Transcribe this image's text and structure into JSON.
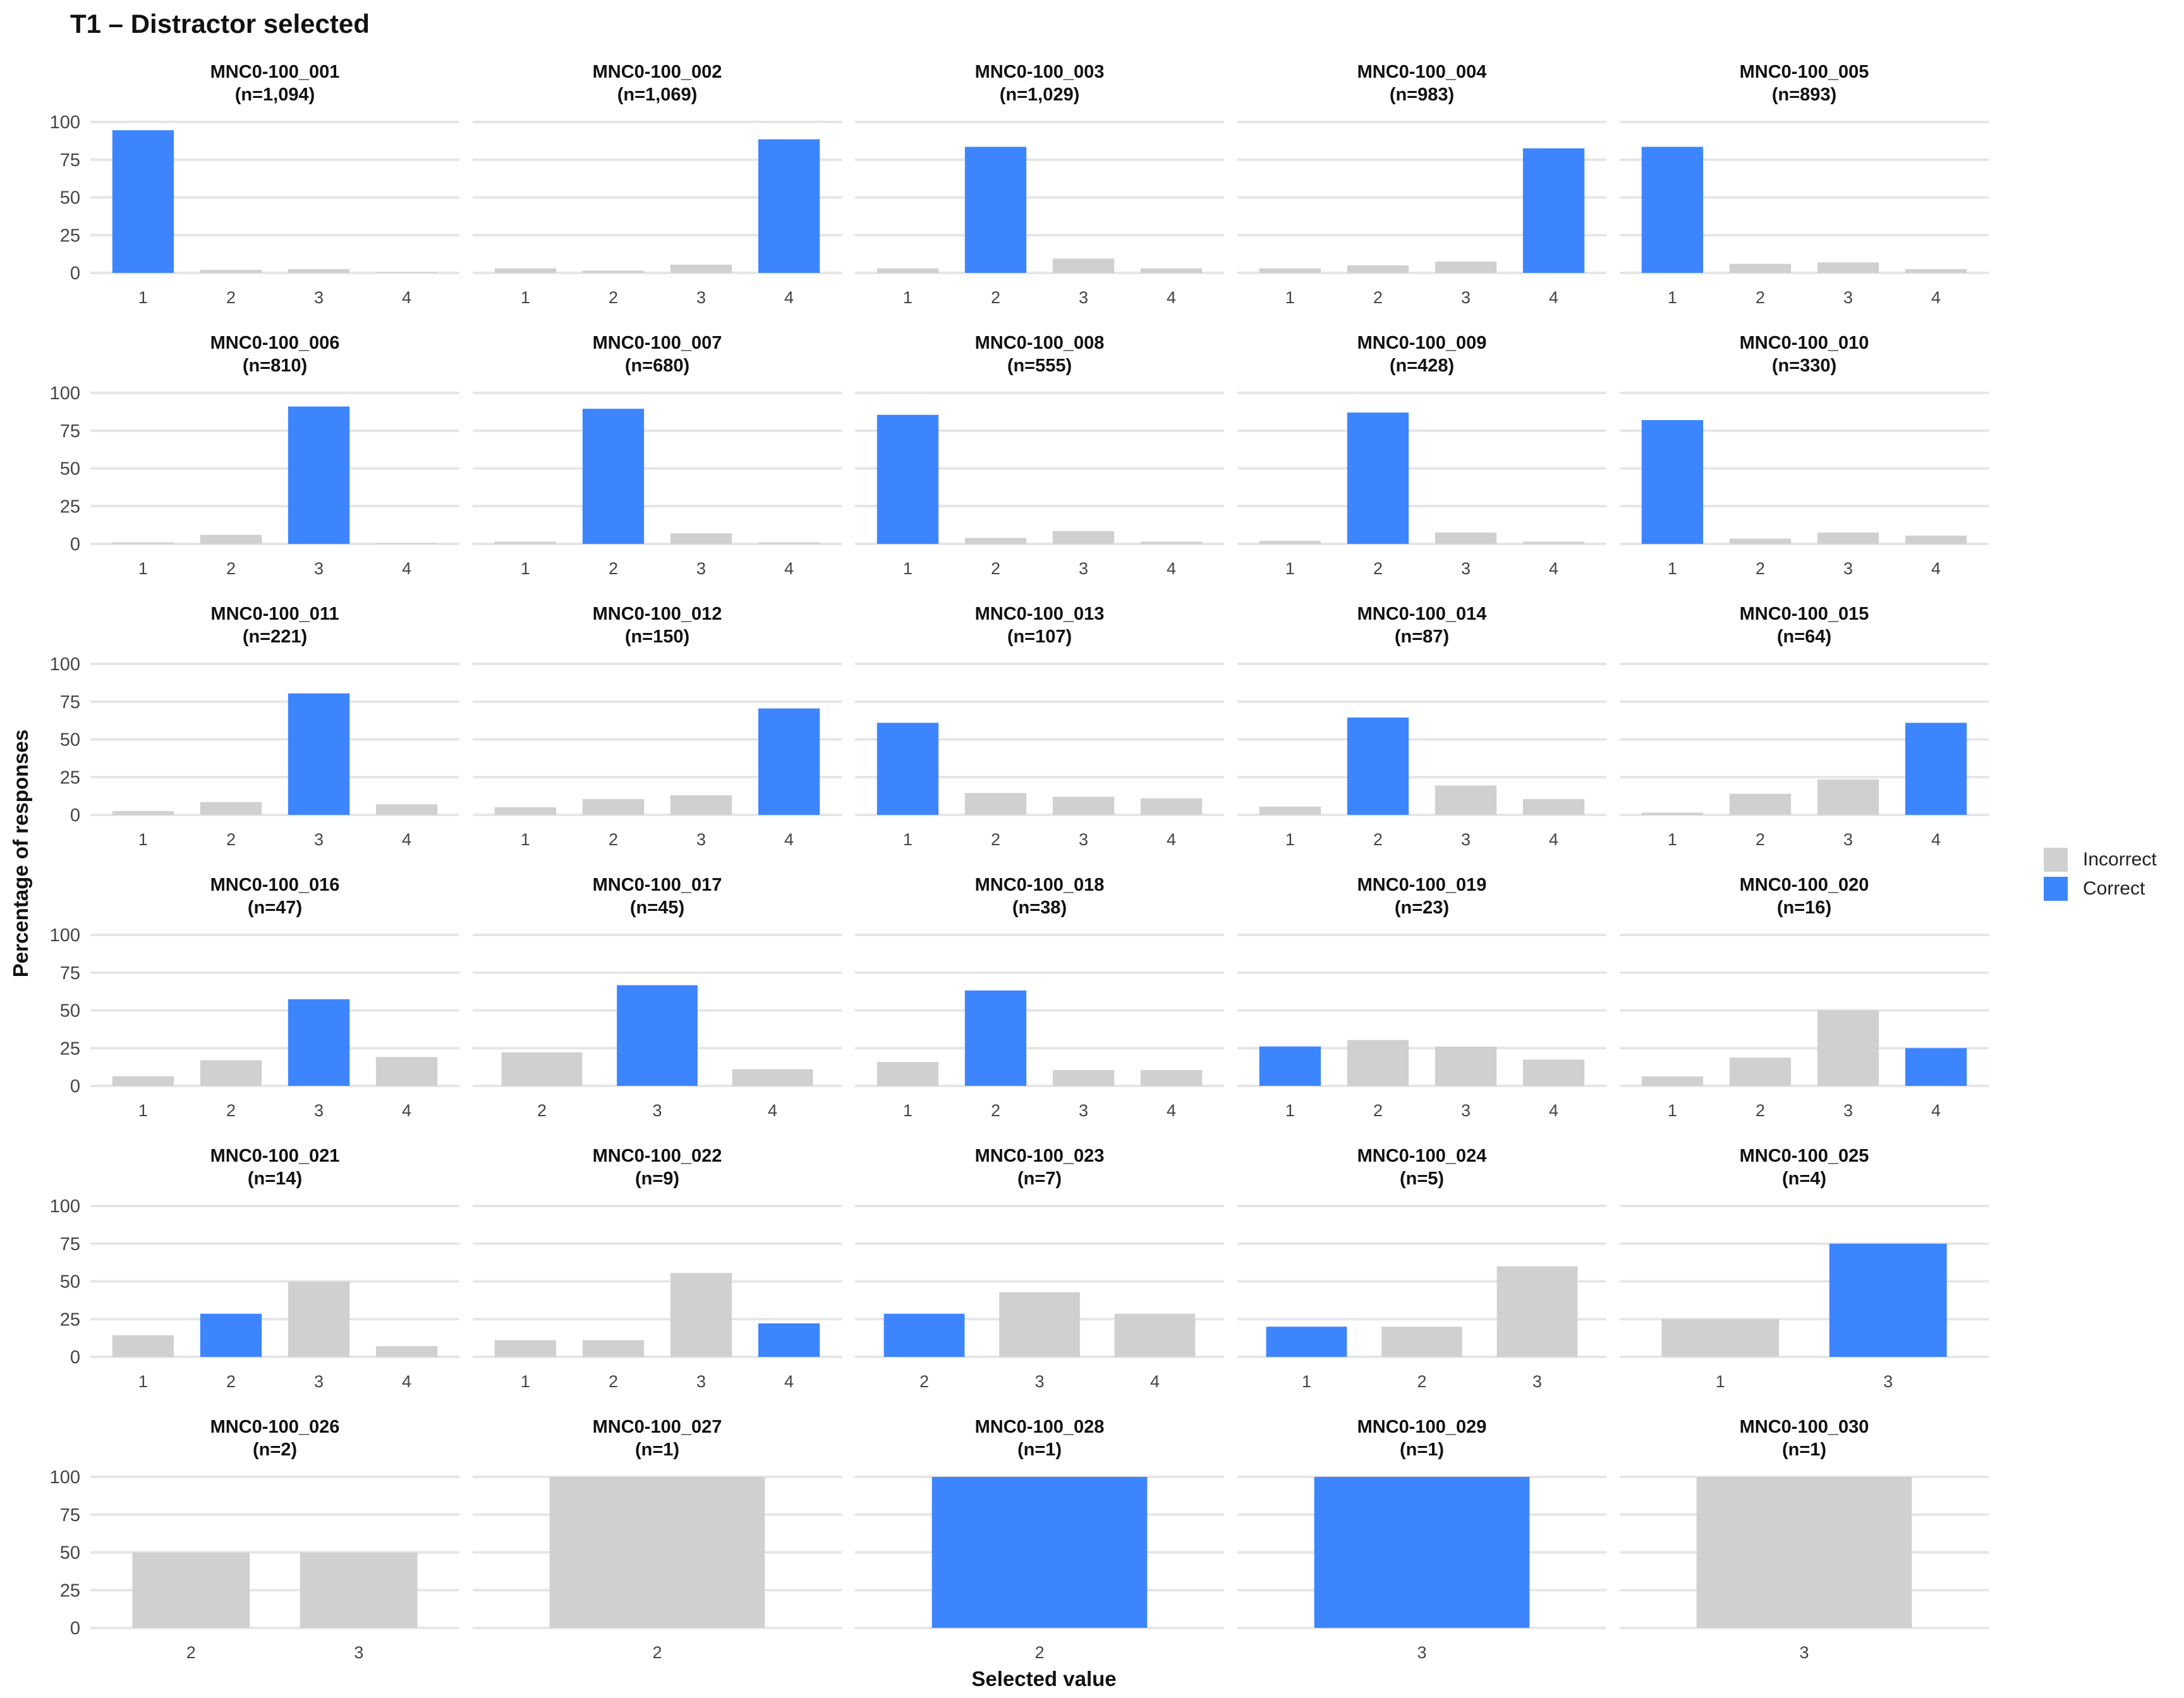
{
  "chart_data": {
    "type": "bar",
    "title": "T1 – Distractor selected",
    "xlabel": "Selected value",
    "ylabel": "Percentage of responses",
    "ylim": [
      0,
      100
    ],
    "yticks": [
      "0",
      "25",
      "50",
      "75",
      "100"
    ],
    "grid": true,
    "legend_position": "right",
    "legend": [
      {
        "name": "Incorrect",
        "color": "#d0d0d0"
      },
      {
        "name": "Correct",
        "color": "#3d85fe"
      }
    ],
    "panels": [
      {
        "id": "MNC0-100_001",
        "n": "(n=1,094)",
        "categories": [
          "1",
          "2",
          "3",
          "4"
        ],
        "values": [
          94.5,
          2,
          2.5,
          0.5
        ],
        "correct": "1"
      },
      {
        "id": "MNC0-100_002",
        "n": "(n=1,069)",
        "categories": [
          "1",
          "2",
          "3",
          "4"
        ],
        "values": [
          3,
          1.5,
          5.5,
          88.5
        ],
        "correct": "4"
      },
      {
        "id": "MNC0-100_003",
        "n": "(n=1,029)",
        "categories": [
          "1",
          "2",
          "3",
          "4"
        ],
        "values": [
          3,
          83.5,
          9.5,
          3
        ],
        "correct": "2"
      },
      {
        "id": "MNC0-100_004",
        "n": "(n=983)",
        "categories": [
          "1",
          "2",
          "3",
          "4"
        ],
        "values": [
          3,
          5,
          7.5,
          82.5
        ],
        "correct": "4"
      },
      {
        "id": "MNC0-100_005",
        "n": "(n=893)",
        "categories": [
          "1",
          "2",
          "3",
          "4"
        ],
        "values": [
          83.5,
          6,
          7,
          2.5
        ],
        "correct": "1"
      },
      {
        "id": "MNC0-100_006",
        "n": "(n=810)",
        "categories": [
          "1",
          "2",
          "3",
          "4"
        ],
        "values": [
          1,
          6,
          91,
          0.5
        ],
        "correct": "3"
      },
      {
        "id": "MNC0-100_007",
        "n": "(n=680)",
        "categories": [
          "1",
          "2",
          "3",
          "4"
        ],
        "values": [
          1.5,
          89.5,
          7,
          1
        ],
        "correct": "2"
      },
      {
        "id": "MNC0-100_008",
        "n": "(n=555)",
        "categories": [
          "1",
          "2",
          "3",
          "4"
        ],
        "values": [
          85.5,
          4,
          8.5,
          1.5
        ],
        "correct": "1"
      },
      {
        "id": "MNC0-100_009",
        "n": "(n=428)",
        "categories": [
          "1",
          "2",
          "3",
          "4"
        ],
        "values": [
          2,
          87,
          7.5,
          1.5
        ],
        "correct": "2"
      },
      {
        "id": "MNC0-100_010",
        "n": "(n=330)",
        "categories": [
          "1",
          "2",
          "3",
          "4"
        ],
        "values": [
          82,
          3.5,
          7.5,
          5.5
        ],
        "correct": "1"
      },
      {
        "id": "MNC0-100_011",
        "n": "(n=221)",
        "categories": [
          "1",
          "2",
          "3",
          "4"
        ],
        "values": [
          2.5,
          8.5,
          80.5,
          7
        ],
        "correct": "3"
      },
      {
        "id": "MNC0-100_012",
        "n": "(n=150)",
        "categories": [
          "1",
          "2",
          "3",
          "4"
        ],
        "values": [
          5,
          10.5,
          13,
          70.5
        ],
        "correct": "4"
      },
      {
        "id": "MNC0-100_013",
        "n": "(n=107)",
        "categories": [
          "1",
          "2",
          "3",
          "4"
        ],
        "values": [
          61,
          14.5,
          12,
          11
        ],
        "correct": "1"
      },
      {
        "id": "MNC0-100_014",
        "n": "(n=87)",
        "categories": [
          "1",
          "2",
          "3",
          "4"
        ],
        "values": [
          5.5,
          64.5,
          19.5,
          10.5
        ],
        "correct": "2"
      },
      {
        "id": "MNC0-100_015",
        "n": "(n=64)",
        "categories": [
          "1",
          "2",
          "3",
          "4"
        ],
        "values": [
          1.5,
          14,
          23.5,
          61
        ],
        "correct": "4"
      },
      {
        "id": "MNC0-100_016",
        "n": "(n=47)",
        "categories": [
          "1",
          "2",
          "3",
          "4"
        ],
        "values": [
          6.4,
          17,
          57.4,
          19.1
        ],
        "correct": "3"
      },
      {
        "id": "MNC0-100_017",
        "n": "(n=45)",
        "categories": [
          "2",
          "3",
          "4"
        ],
        "values": [
          22.2,
          66.7,
          11.1
        ],
        "correct": "3"
      },
      {
        "id": "MNC0-100_018",
        "n": "(n=38)",
        "categories": [
          "1",
          "2",
          "3",
          "4"
        ],
        "values": [
          15.8,
          63.2,
          10.5,
          10.5
        ],
        "correct": "2"
      },
      {
        "id": "MNC0-100_019",
        "n": "(n=23)",
        "categories": [
          "1",
          "2",
          "3",
          "4"
        ],
        "values": [
          26.1,
          30.4,
          26.1,
          17.4
        ],
        "correct": "1"
      },
      {
        "id": "MNC0-100_020",
        "n": "(n=16)",
        "categories": [
          "1",
          "2",
          "3",
          "4"
        ],
        "values": [
          6.25,
          18.75,
          50,
          25
        ],
        "correct": "4"
      },
      {
        "id": "MNC0-100_021",
        "n": "(n=14)",
        "categories": [
          "1",
          "2",
          "3",
          "4"
        ],
        "values": [
          14.3,
          28.6,
          50,
          7.1
        ],
        "correct": "2"
      },
      {
        "id": "MNC0-100_022",
        "n": "(n=9)",
        "categories": [
          "1",
          "2",
          "3",
          "4"
        ],
        "values": [
          11.1,
          11.1,
          55.6,
          22.2
        ],
        "correct": "4"
      },
      {
        "id": "MNC0-100_023",
        "n": "(n=7)",
        "categories": [
          "2",
          "3",
          "4"
        ],
        "values": [
          28.6,
          42.9,
          28.6
        ],
        "correct": "2"
      },
      {
        "id": "MNC0-100_024",
        "n": "(n=5)",
        "categories": [
          "1",
          "2",
          "3"
        ],
        "values": [
          20,
          20,
          60
        ],
        "correct": "1"
      },
      {
        "id": "MNC0-100_025",
        "n": "(n=4)",
        "categories": [
          "1",
          "3"
        ],
        "values": [
          25,
          75
        ],
        "correct": "3"
      },
      {
        "id": "MNC0-100_026",
        "n": "(n=2)",
        "categories": [
          "2",
          "3"
        ],
        "values": [
          50,
          50
        ],
        "correct": null
      },
      {
        "id": "MNC0-100_027",
        "n": "(n=1)",
        "categories": [
          "2"
        ],
        "values": [
          100
        ],
        "correct": null
      },
      {
        "id": "MNC0-100_028",
        "n": "(n=1)",
        "categories": [
          "2"
        ],
        "values": [
          100
        ],
        "correct": "2"
      },
      {
        "id": "MNC0-100_029",
        "n": "(n=1)",
        "categories": [
          "3"
        ],
        "values": [
          100
        ],
        "correct": "3"
      },
      {
        "id": "MNC0-100_030",
        "n": "(n=1)",
        "categories": [
          "3"
        ],
        "values": [
          100
        ],
        "correct": null
      }
    ]
  }
}
